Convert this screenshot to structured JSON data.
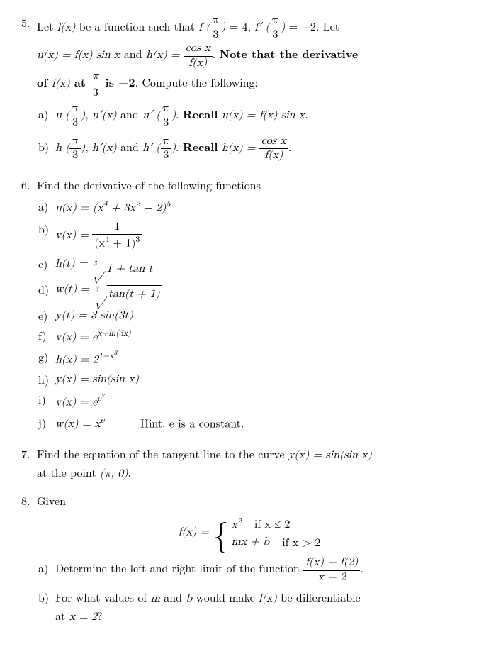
{
  "p5": {
    "num": "5.",
    "lead_a": "Let ",
    "lead_b": " be a function such that ",
    "eq1_lhs_f": "f",
    "eq1_arg": "π",
    "eq1_argden": "3",
    "eq1_rhs": " = 4, ",
    "eq2_lhs": "f′",
    "eq2_rhs": " = −2.  Let",
    "line2_a": "u(x) = f(x) sin x",
    "line2_mid": " and ",
    "line2_h": "h(x) = ",
    "frac_cos": "cos x",
    "frac_fx": "f(x)",
    "note": ". Note that the derivative",
    "line3_a": "of ",
    "line3_fx": "f(x)",
    "line3_b": " at ",
    "line3_c": " is −2. Compute the following:",
    "a": {
      "label": "a)",
      "t1": "u",
      "t2": ", ",
      "t3": "u′(x)",
      "t4": " and ",
      "t5": "u′",
      "recall": ". Recall ",
      "eq": "u(x) = f(x) sin x",
      "dot": "."
    },
    "b": {
      "label": "b)",
      "t1": "h",
      "t2": ", ",
      "t3": "h′(x)",
      "t4": " and ",
      "t5": "h′",
      "recall": ". Recall ",
      "eq": "h(x) = ",
      "dot": "."
    }
  },
  "p6": {
    "num": "6.",
    "lead": "Find the derivative of the following functions",
    "a": {
      "label": "a)",
      "body": "u(x) = (x",
      "exp1": "4",
      "mid": " + 3x",
      "exp2": "2",
      "tail": " − 2)",
      "exp3": "5"
    },
    "b": {
      "label": "b)",
      "lhs": "v(x) = ",
      "num": "1",
      "den_a": "(x",
      "den_e": "4",
      "den_b": " + 1)",
      "den_e2": "3"
    },
    "c": {
      "label": "c)",
      "lhs": "h(t) = ",
      "idx": "3",
      "rad": "1 + tan t"
    },
    "d": {
      "label": "d)",
      "lhs": "w(t) = ",
      "idx": "3",
      "rad": "tan(t + 1)"
    },
    "e": {
      "label": "e)",
      "body": "y(t) = 3 sin(3t)"
    },
    "f": {
      "label": "f)",
      "lhs": "v(x) = e",
      "exp": "x+ln(3x)"
    },
    "g": {
      "label": "g)",
      "lhs": "h(x) = 2",
      "exp": "1−x",
      "exp2": "3"
    },
    "h": {
      "label": "h)",
      "body": "y(x) = sin(sin x)"
    },
    "i": {
      "label": "i)",
      "lhs": "v(x) = e",
      "exp": "e",
      "exp2": "x"
    },
    "j": {
      "label": "j)",
      "lhs": "w(x) = x",
      "exp": "e",
      "hint": "Hint: e is a constant."
    }
  },
  "p7": {
    "num": "7.",
    "t1": "Find the equation of the tangent line to the curve ",
    "eq": "y(x) = sin(sin x)",
    "t2": "at the point ",
    "pt": "(π, 0)",
    "dot": "."
  },
  "p8": {
    "num": "8.",
    "lead": "Given",
    "fx": "f(x) = ",
    "c1a": "x",
    "c1e": "2",
    "c1cond": "if   x ≤ 2",
    "c2a": "mx + b",
    "c2cond": "if   x > 2",
    "a": {
      "label": "a)",
      "t1": "Determine the left and right limit of the function ",
      "num": "f(x) − f(2)",
      "den": "x − 2",
      "dot": "."
    },
    "b": {
      "label": "b)",
      "t1": "For what values of ",
      "m": "m",
      "t2": " and ",
      "bv": "b",
      "t3": " would make ",
      "fx": "f(x)",
      "t4": " be differentiable",
      "t5": "at ",
      "eq": "x = 2",
      "q": "?"
    }
  }
}
